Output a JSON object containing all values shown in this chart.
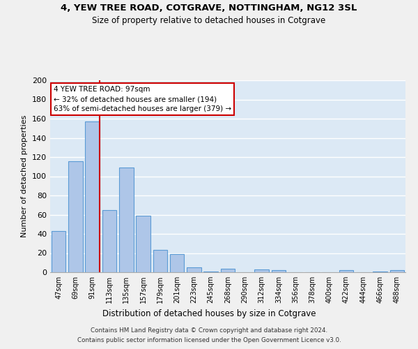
{
  "title": "4, YEW TREE ROAD, COTGRAVE, NOTTINGHAM, NG12 3SL",
  "subtitle": "Size of property relative to detached houses in Cotgrave",
  "xlabel": "Distribution of detached houses by size in Cotgrave",
  "ylabel": "Number of detached properties",
  "bar_labels": [
    "47sqm",
    "69sqm",
    "91sqm",
    "113sqm",
    "135sqm",
    "157sqm",
    "179sqm",
    "201sqm",
    "223sqm",
    "245sqm",
    "268sqm",
    "290sqm",
    "312sqm",
    "334sqm",
    "356sqm",
    "378sqm",
    "400sqm",
    "422sqm",
    "444sqm",
    "466sqm",
    "488sqm"
  ],
  "bar_values": [
    43,
    116,
    157,
    65,
    109,
    59,
    23,
    19,
    5,
    1,
    4,
    0,
    3,
    2,
    0,
    0,
    0,
    2,
    0,
    1,
    2
  ],
  "bar_color": "#aec6e8",
  "bar_edge_color": "#5b9bd5",
  "plot_bg_color": "#dce9f5",
  "fig_bg_color": "#f0f0f0",
  "grid_color": "#ffffff",
  "vline_color": "#cc0000",
  "vline_x_index": 2,
  "annotation_title": "4 YEW TREE ROAD: 97sqm",
  "annotation_line1": "← 32% of detached houses are smaller (194)",
  "annotation_line2": "63% of semi-detached houses are larger (379) →",
  "annotation_box_facecolor": "#ffffff",
  "annotation_box_edgecolor": "#cc0000",
  "ylim": [
    0,
    200
  ],
  "yticks": [
    0,
    20,
    40,
    60,
    80,
    100,
    120,
    140,
    160,
    180,
    200
  ],
  "footer_line1": "Contains HM Land Registry data © Crown copyright and database right 2024.",
  "footer_line2": "Contains public sector information licensed under the Open Government Licence v3.0."
}
